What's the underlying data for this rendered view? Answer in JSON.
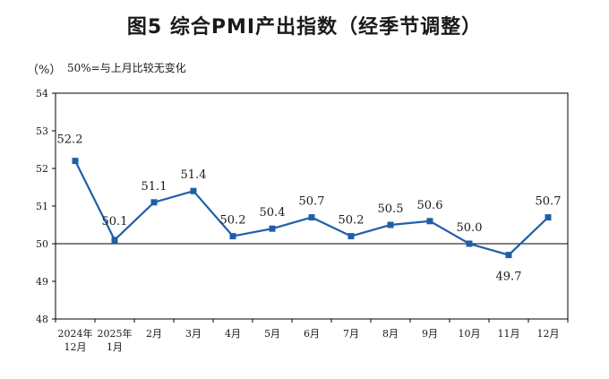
{
  "title": "图5  综合PMI产出指数（经季节调整）",
  "unit": "（%）",
  "note": "50%=与上月比较无变化",
  "colors": {
    "line": "#1f5fa8",
    "axis": "#000000"
  },
  "chart_data": {
    "type": "line",
    "title": "图5  综合PMI产出指数（经季节调整）",
    "ylabel": "（%）",
    "ylim": [
      48,
      54
    ],
    "yticks": [
      "48",
      "49",
      "50",
      "51",
      "52",
      "53",
      "54"
    ],
    "reference_line": 50,
    "categories": [
      [
        "2024年",
        "12月"
      ],
      [
        "2025年",
        "1月"
      ],
      [
        "2月"
      ],
      [
        "3月"
      ],
      [
        "4月"
      ],
      [
        "5月"
      ],
      [
        "6月"
      ],
      [
        "7月"
      ],
      [
        "8月"
      ],
      [
        "9月"
      ],
      [
        "10月"
      ],
      [
        "11月"
      ],
      [
        "12月"
      ]
    ],
    "values": [
      52.2,
      50.1,
      51.1,
      51.4,
      50.2,
      50.4,
      50.7,
      50.2,
      50.5,
      50.6,
      50.0,
      49.7,
      50.7
    ],
    "labels": [
      "52.2",
      "50.1",
      "51.1",
      "51.4",
      "50.2",
      "50.4",
      "50.7",
      "50.2",
      "50.5",
      "50.6",
      "50.0",
      "49.7",
      "50.7"
    ],
    "grid": false
  }
}
